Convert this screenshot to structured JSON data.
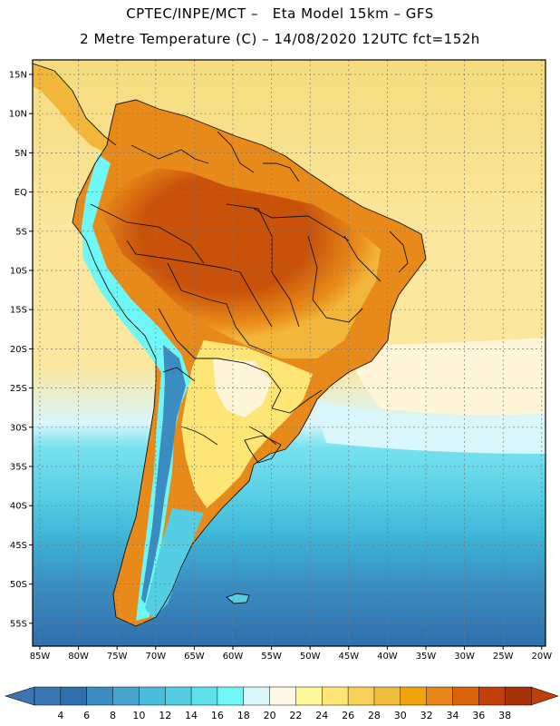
{
  "title_line1": "CPTEC/INPE/MCT –   Eta Model 15km – GFS",
  "title_line2": "2 Metre Temperature (C) – 14/08/2020 12UTC fct=152h",
  "lat_labels": [
    "15N",
    "10N",
    "5N",
    "EQ",
    "5S",
    "10S",
    "15S",
    "20S",
    "25S",
    "30S",
    "35S",
    "40S",
    "45S",
    "50S",
    "55S"
  ],
  "lon_labels": [
    "85W",
    "80W",
    "75W",
    "70W",
    "65W",
    "60W",
    "55W",
    "50W",
    "45W",
    "40W",
    "35W",
    "30W",
    "25W",
    "20W"
  ],
  "colorbar": {
    "labels": [
      "4",
      "6",
      "8",
      "10",
      "12",
      "14",
      "16",
      "18",
      "20",
      "22",
      "24",
      "26",
      "28",
      "30",
      "32",
      "34",
      "36",
      "38"
    ],
    "colors": [
      "#3b76b3",
      "#2f6fad",
      "#3b8cc0",
      "#45a5cf",
      "#4bbcdc",
      "#55cde3",
      "#5fe0ea",
      "#6ff6f6",
      "#d9f6fb",
      "#fff8e6",
      "#fff89a",
      "#fde675",
      "#f7d05a",
      "#f0bc3c",
      "#efa40e",
      "#e8861a",
      "#d9620a",
      "#c1400a",
      "#a83208"
    ],
    "left_arrow_color": "#3b76b3",
    "right_arrow_color": "#c1400a"
  },
  "map_colors": {
    "ocean_north": "#f6dc7e",
    "ocean_mid": "#fbe79d",
    "ocean_pale": "#fff5d9",
    "ocean_cold1": "#d9f6fb",
    "ocean_cold2": "#78e2ef",
    "ocean_cold3": "#55cde3",
    "ocean_cold4": "#3bb2d6",
    "ocean_cold5": "#3b8cc0",
    "ocean_cold6": "#2f6fad",
    "land_hot": "#c9520a",
    "land_warm": "#e88a1a",
    "land_mild": "#f2b63a",
    "land_cool": "#fde675",
    "andes": "#6ff6f6",
    "andes_deep": "#3b8cc0",
    "patagonia": "#55cde3",
    "border": "#111111"
  }
}
